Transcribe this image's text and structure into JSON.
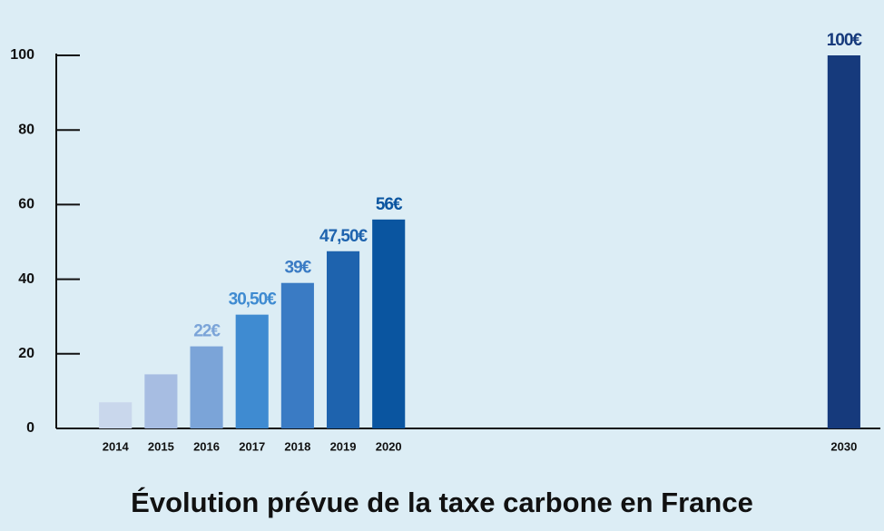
{
  "chart_data": {
    "type": "bar",
    "title": "Évolution prévue de la taxe carbone en France",
    "x": [
      2014,
      2015,
      2016,
      2017,
      2018,
      2019,
      2020,
      2030
    ],
    "values": [
      7,
      14.5,
      22,
      30.5,
      39,
      47.5,
      56,
      100
    ],
    "value_labels": [
      null,
      null,
      "22€",
      "30,50€",
      "39€",
      "47,50€",
      "56€",
      "100€"
    ],
    "colors": [
      "#c9d7ec",
      "#a7bde2",
      "#7ba4d8",
      "#3f8bd1",
      "#3a7bc4",
      "#1e63ae",
      "#0a55a0",
      "#163a7c"
    ],
    "xlim": [
      2012.7,
      2030.8
    ],
    "ylim": [
      0,
      100
    ],
    "yticks": [
      0,
      20,
      40,
      60,
      80,
      100
    ],
    "grid": false
  }
}
